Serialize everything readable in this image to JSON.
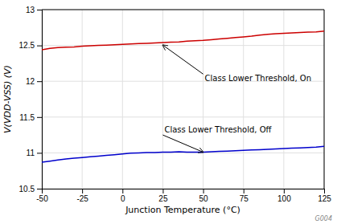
{
  "chart_data": {
    "type": "line",
    "xlabel": "Junction Temperature (°C)",
    "ylabel": "V(VDD-VSS) (V)",
    "xlim": [
      -50,
      125
    ],
    "ylim": [
      10.5,
      13
    ],
    "xticks": [
      -50,
      -25,
      0,
      25,
      50,
      75,
      100,
      125
    ],
    "yticks": [
      10.5,
      11,
      11.5,
      12,
      12.5,
      13
    ],
    "grid": true,
    "x": [
      -50,
      -45,
      -40,
      -35,
      -30,
      -25,
      -20,
      -15,
      -10,
      -5,
      0,
      5,
      10,
      15,
      20,
      25,
      30,
      35,
      40,
      45,
      50,
      55,
      60,
      65,
      70,
      75,
      80,
      85,
      90,
      95,
      100,
      105,
      110,
      115,
      120,
      125
    ],
    "series": [
      {
        "color": "#cc0000",
        "values": [
          12.44,
          12.46,
          12.47,
          12.475,
          12.48,
          12.49,
          12.495,
          12.5,
          12.505,
          12.51,
          12.515,
          12.52,
          12.525,
          12.53,
          12.535,
          12.54,
          12.545,
          12.55,
          12.56,
          12.565,
          12.57,
          12.58,
          12.59,
          12.6,
          12.61,
          12.62,
          12.63,
          12.645,
          12.655,
          12.665,
          12.67,
          12.675,
          12.68,
          12.685,
          12.69,
          12.7
        ]
      },
      {
        "color": "#0000cc",
        "values": [
          10.87,
          10.885,
          10.9,
          10.915,
          10.925,
          10.935,
          10.945,
          10.955,
          10.965,
          10.975,
          10.985,
          10.995,
          11.0,
          11.005,
          11.005,
          11.01,
          11.01,
          11.015,
          11.01,
          11.01,
          11.01,
          11.015,
          11.02,
          11.025,
          11.03,
          11.035,
          11.04,
          11.045,
          11.05,
          11.055,
          11.06,
          11.065,
          11.07,
          11.075,
          11.08,
          11.09
        ]
      }
    ],
    "annotations": [
      {
        "text": "Class Lower Threshold, On",
        "x": 50,
        "y": 12.1,
        "arrow_x": 25,
        "arrow_y": 12.505
      },
      {
        "text": "Class Lower Threshold, Off",
        "x": 25,
        "y": 11.25,
        "arrow_x": 50,
        "arrow_y": 11.01
      },
      {
        "text": "G004"
      }
    ]
  }
}
